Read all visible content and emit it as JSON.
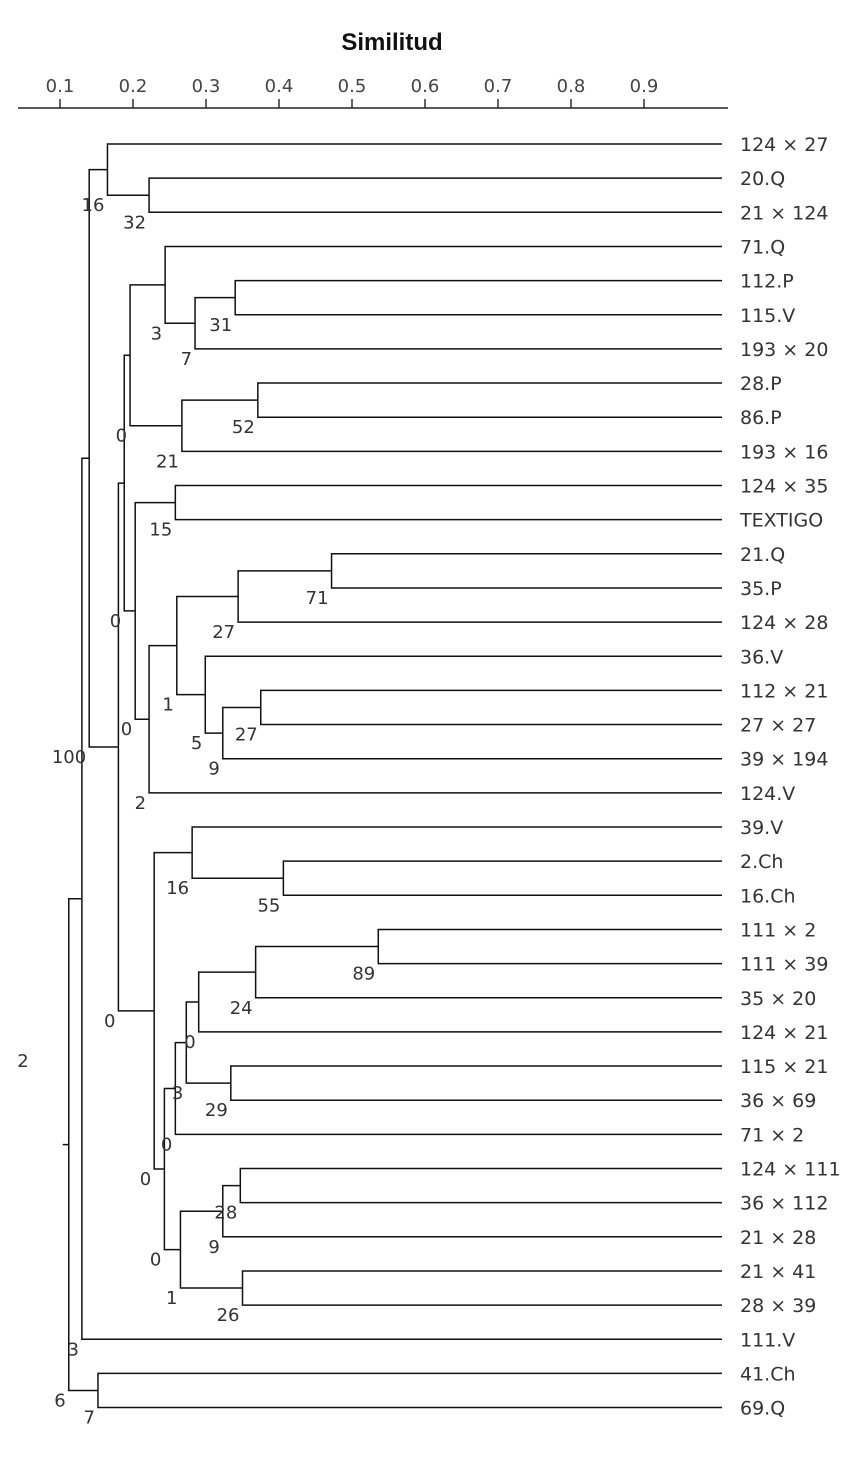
{
  "chart_data": {
    "type": "dendrogram",
    "title": "Similitud",
    "xlabel": "Similitud",
    "xlim": [
      0.06,
      0.97
    ],
    "ticks": [
      "0.1",
      "0.2",
      "0.3",
      "0.4",
      "0.5",
      "0.6",
      "0.7",
      "0.8",
      "0.9"
    ],
    "tick_values": [
      0.1,
      0.2,
      0.3,
      0.4,
      0.5,
      0.6,
      0.7,
      0.8,
      0.9
    ],
    "leaves": [
      "124 × 27",
      "20.Q",
      "21 × 124",
      "71.Q",
      "112.P",
      "115.V",
      "193 × 20",
      "28.P",
      "86.P",
      "193 × 16",
      "124 × 35",
      "TEXTIGO",
      "21.Q",
      "35.P",
      "124 × 28",
      "36.V",
      "112 × 21",
      "27 × 27",
      "39 × 194",
      "124.V",
      "39.V",
      "2.Ch",
      "16.Ch",
      "111 × 2",
      "111 × 39",
      "35 × 20",
      "124 × 21",
      "115 × 21",
      "36 × 69",
      "71 × 2",
      "124 × 111",
      "36 × 112",
      "21 × 28",
      "21 × 41",
      "28 × 39",
      "111.V",
      "41.Ch",
      "69.Q"
    ],
    "nodes": [
      {
        "id": "n1",
        "children": [
          "L1",
          "L2"
        ],
        "similarity": 0.222,
        "support": "32"
      },
      {
        "id": "n2",
        "children": [
          "L0",
          "n1"
        ],
        "similarity": 0.165,
        "support": "16"
      },
      {
        "id": "n3",
        "children": [
          "L4",
          "L5"
        ],
        "similarity": 0.34,
        "support": "31"
      },
      {
        "id": "n4",
        "children": [
          "n3",
          "L6"
        ],
        "similarity": 0.285,
        "support": "7"
      },
      {
        "id": "n5",
        "children": [
          "L3",
          "n4"
        ],
        "similarity": 0.244,
        "support": "3"
      },
      {
        "id": "n6",
        "children": [
          "L7",
          "L8"
        ],
        "similarity": 0.371,
        "support": "52"
      },
      {
        "id": "n7",
        "children": [
          "n6",
          "L9"
        ],
        "similarity": 0.267,
        "support": "21"
      },
      {
        "id": "n8",
        "children": [
          "n5",
          "n7"
        ],
        "similarity": 0.196,
        "support": "0"
      },
      {
        "id": "n9",
        "children": [
          "L10",
          "L11"
        ],
        "similarity": 0.258,
        "support": "15"
      },
      {
        "id": "n10",
        "children": [
          "L12",
          "L13"
        ],
        "similarity": 0.472,
        "support": "71"
      },
      {
        "id": "n11",
        "children": [
          "n10",
          "L14"
        ],
        "similarity": 0.344,
        "support": "27"
      },
      {
        "id": "n12",
        "children": [
          "L16",
          "L17"
        ],
        "similarity": 0.375,
        "support": "27"
      },
      {
        "id": "n13",
        "children": [
          "n12",
          "L18"
        ],
        "similarity": 0.323,
        "support": "9"
      },
      {
        "id": "n14",
        "children": [
          "L15",
          "n13"
        ],
        "similarity": 0.299,
        "support": "5"
      },
      {
        "id": "n15",
        "children": [
          "n11",
          "n14"
        ],
        "similarity": 0.26,
        "support": "1"
      },
      {
        "id": "n16",
        "children": [
          "n15",
          "L19"
        ],
        "similarity": 0.222,
        "support": "2"
      },
      {
        "id": "n17",
        "children": [
          "n9",
          "n16"
        ],
        "similarity": 0.203,
        "support": "0"
      },
      {
        "id": "n18",
        "children": [
          "n8",
          "n17"
        ],
        "similarity": 0.188,
        "support": "0"
      },
      {
        "id": "n19",
        "children": [
          "L21",
          "L22"
        ],
        "similarity": 0.406,
        "support": "55"
      },
      {
        "id": "n20",
        "children": [
          "L20",
          "n19"
        ],
        "similarity": 0.281,
        "support": "16"
      },
      {
        "id": "n21",
        "children": [
          "L23",
          "L24"
        ],
        "similarity": 0.536,
        "support": "89"
      },
      {
        "id": "n22",
        "children": [
          "n21",
          "L25"
        ],
        "similarity": 0.368,
        "support": "24"
      },
      {
        "id": "n23",
        "children": [
          "n22",
          "L26"
        ],
        "similarity": 0.29,
        "support": "0"
      },
      {
        "id": "n24",
        "children": [
          "L27",
          "L28"
        ],
        "similarity": 0.334,
        "support": "29"
      },
      {
        "id": "n25",
        "children": [
          "n23",
          "n24"
        ],
        "similarity": 0.273,
        "support": "3"
      },
      {
        "id": "n26",
        "children": [
          "n25",
          "L29"
        ],
        "similarity": 0.258,
        "support": "0"
      },
      {
        "id": "n27",
        "children": [
          "L30",
          "L31"
        ],
        "similarity": 0.347,
        "support": "28"
      },
      {
        "id": "n28",
        "children": [
          "n27",
          "L32"
        ],
        "similarity": 0.323,
        "support": "9"
      },
      {
        "id": "n29",
        "children": [
          "L33",
          "L34"
        ],
        "similarity": 0.35,
        "support": "26"
      },
      {
        "id": "n30",
        "children": [
          "n28",
          "n29"
        ],
        "similarity": 0.265,
        "support": "1"
      },
      {
        "id": "n31",
        "children": [
          "n26",
          "n30"
        ],
        "similarity": 0.243,
        "support": "0"
      },
      {
        "id": "n32",
        "children": [
          "n20",
          "n31"
        ],
        "similarity": 0.229,
        "support": "0"
      },
      {
        "id": "n33",
        "children": [
          "n18",
          "n32"
        ],
        "similarity": 0.18,
        "support": "0"
      },
      {
        "id": "n34",
        "children": [
          "n2",
          "n33"
        ],
        "similarity": 0.14,
        "support": "100"
      },
      {
        "id": "n35",
        "children": [
          "n34",
          "L35"
        ],
        "similarity": 0.13,
        "support": "3"
      },
      {
        "id": "n36",
        "children": [
          "L36",
          "L37"
        ],
        "similarity": 0.152,
        "support": "7"
      },
      {
        "id": "n37",
        "children": [
          "n35",
          "n36"
        ],
        "similarity": 0.112,
        "support": "6"
      }
    ],
    "root_support": "2"
  }
}
